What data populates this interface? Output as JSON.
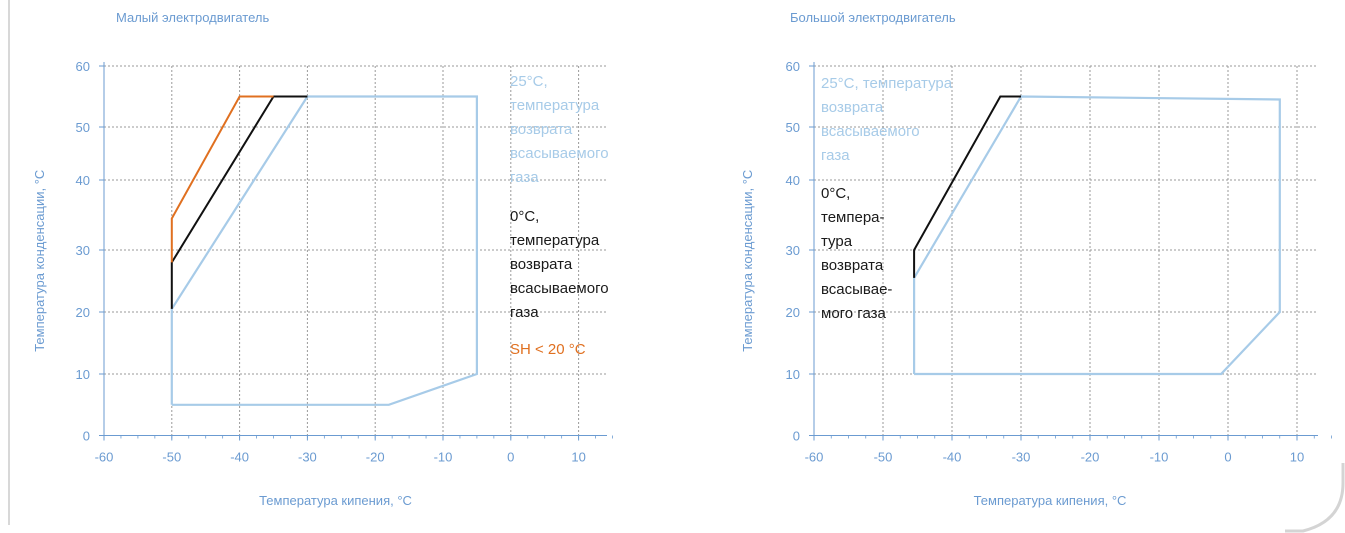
{
  "chart_data": [
    {
      "type": "line",
      "title": "Малый электродвигатель",
      "xlabel": "Температура кипения, °C",
      "ylabel": "Температура конденсации, °C",
      "xlim": [
        -60,
        15
      ],
      "ylim": [
        0,
        60
      ],
      "xticks": [
        "-60",
        "-50",
        "-40",
        "-30",
        "-20",
        "-10",
        "0",
        "10"
      ],
      "yticks": [
        "0",
        "10",
        "20",
        "30",
        "40",
        "50",
        "60"
      ],
      "grid": true,
      "series": [
        {
          "color": "#a7cbe8",
          "points": [
            [
              -50,
              5
            ],
            [
              -50,
              20.5
            ],
            [
              -30,
              55
            ],
            [
              -5,
              55
            ],
            [
              -5,
              10
            ],
            [
              -18,
              5
            ],
            [
              -50,
              5
            ]
          ]
        },
        {
          "color": "#111111",
          "points": [
            [
              -50,
              20.5
            ],
            [
              -50,
              28
            ],
            [
              -35,
              55
            ],
            [
              -30,
              55
            ]
          ]
        },
        {
          "color": "#e07020",
          "points": [
            [
              -50,
              28
            ],
            [
              -50,
              34.5
            ],
            [
              -40,
              55
            ],
            [
              -35,
              55
            ]
          ]
        }
      ],
      "annotations": [
        {
          "text": "25°C, температура возврата всасываемого газа",
          "color": "#a7cbe8"
        },
        {
          "text": "0°C, температура возврата всасываемого газа",
          "color": "#111111"
        },
        {
          "text": "SH < 20 °C",
          "color": "#e07020"
        }
      ]
    },
    {
      "type": "line",
      "title": "Большой электродвигатель",
      "xlabel": "Температура кипения, °C",
      "ylabel": "Температура конденсации, °C",
      "xlim": [
        -60,
        15
      ],
      "ylim": [
        0,
        60
      ],
      "xticks": [
        "-60",
        "-50",
        "-40",
        "-30",
        "-20",
        "-10",
        "0",
        "10"
      ],
      "yticks": [
        "0",
        "10",
        "20",
        "30",
        "40",
        "50",
        "60"
      ],
      "grid": true,
      "series": [
        {
          "color": "#a7cbe8",
          "points": [
            [
              -45.5,
              10
            ],
            [
              -45.5,
              25.5
            ],
            [
              -30,
              55
            ],
            [
              7.5,
              54.5
            ],
            [
              7.5,
              20
            ],
            [
              -1,
              10
            ],
            [
              -45.5,
              10
            ]
          ]
        },
        {
          "color": "#111111",
          "points": [
            [
              -45.5,
              25.5
            ],
            [
              -45.5,
              30
            ],
            [
              -33,
              55
            ],
            [
              -30,
              55
            ]
          ]
        }
      ],
      "annotations": [
        {
          "text": "25°C, температура возврата всасываемого газа",
          "color": "#a7cbe8"
        },
        {
          "text": "0°C, темпера- тура возврата всасывае- мого газа",
          "color": "#111111"
        }
      ]
    }
  ],
  "annotation_lines": {
    "left_light": [
      "25°C,",
      "температура",
      "возврата",
      "всасываемого",
      "газа"
    ],
    "left_dark": [
      "0°C,",
      "температура",
      "возврата",
      "всасываемого",
      "газа"
    ],
    "left_orange": "SH < 20 °C",
    "right_light": [
      "25°C, температура",
      "возврата",
      "всасываемого",
      "газа"
    ],
    "right_dark": [
      "0°C,",
      "темпера-",
      "тура",
      "возврата",
      "всасывае-",
      "мого газа"
    ]
  }
}
